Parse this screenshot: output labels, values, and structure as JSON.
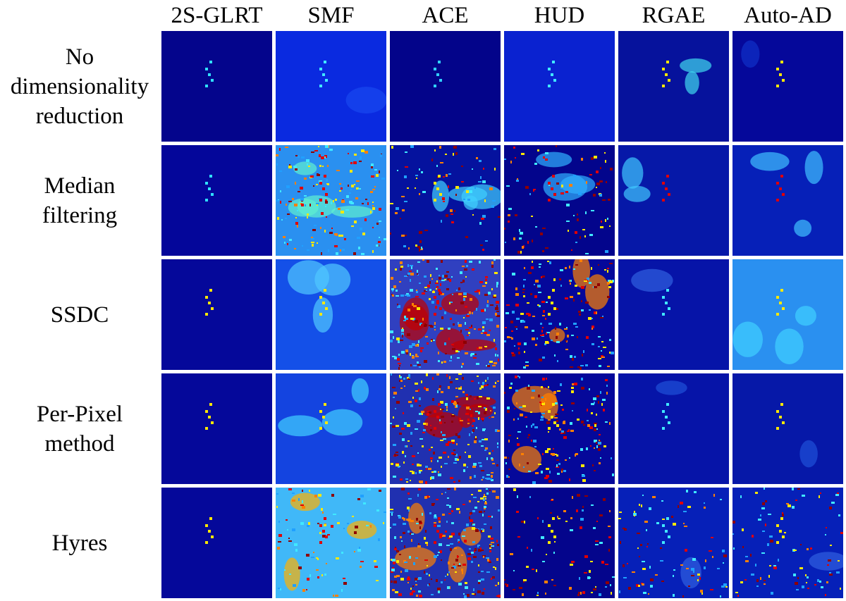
{
  "columns": [
    "2S-GLRT",
    "SMF",
    "ACE",
    "HUD",
    "RGAE",
    "Auto-AD"
  ],
  "rows": [
    {
      "lines": [
        "No",
        "dimensionality",
        "reduction"
      ]
    },
    {
      "lines": [
        "Median",
        "filtering"
      ]
    },
    {
      "lines": [
        "SSDC"
      ]
    },
    {
      "lines": [
        "Per-Pixel",
        "method"
      ]
    },
    {
      "lines": [
        "Hyres"
      ]
    }
  ],
  "colormap": {
    "dark_blue": "#00008f",
    "blue": "#0020ff",
    "light_blue": "#20a0ff",
    "cyan": "#40e8ff",
    "yellow": "#ffe800",
    "orange": "#ff8000",
    "red": "#e00000",
    "dark_red": "#8f0000"
  }
}
